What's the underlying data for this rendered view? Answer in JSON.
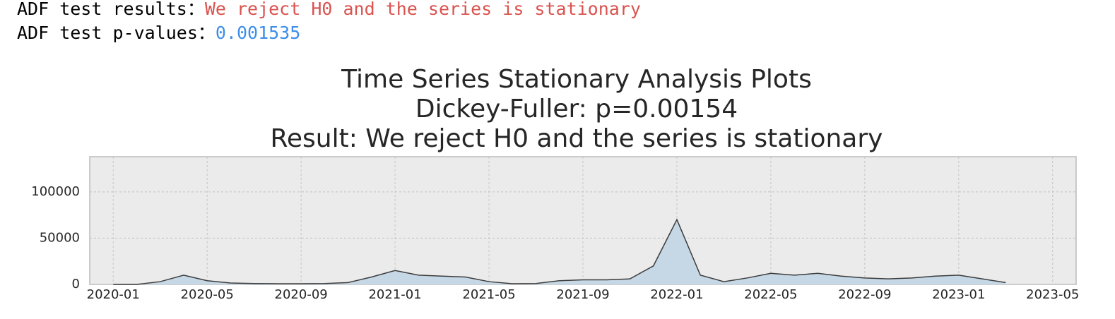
{
  "output": {
    "lines": [
      {
        "label": "ADF test results：",
        "value": "We reject H0 and the series is stationary"
      },
      {
        "label": "ADF test p-values：",
        "value": "0.001535"
      }
    ]
  },
  "chart_data": {
    "type": "area",
    "title": [
      "Time Series Stationary Analysis Plots",
      "Dickey-Fuller: p=0.00154",
      "Result: We reject H0 and the series is stationary"
    ],
    "x": [
      "2020-01",
      "2020-02",
      "2020-03",
      "2020-04",
      "2020-05",
      "2020-06",
      "2020-07",
      "2020-08",
      "2020-09",
      "2020-10",
      "2020-11",
      "2020-12",
      "2021-01",
      "2021-02",
      "2021-03",
      "2021-04",
      "2021-05",
      "2021-06",
      "2021-07",
      "2021-08",
      "2021-09",
      "2021-10",
      "2021-11",
      "2021-12",
      "2022-01",
      "2022-02",
      "2022-03",
      "2022-04",
      "2022-05",
      "2022-06",
      "2022-07",
      "2022-08",
      "2022-09",
      "2022-10",
      "2022-11",
      "2022-12",
      "2023-01",
      "2023-02",
      "2023-03"
    ],
    "values": [
      0,
      0,
      3000,
      10000,
      4000,
      1500,
      1000,
      800,
      800,
      1000,
      2000,
      8000,
      15000,
      10000,
      9000,
      8000,
      3000,
      800,
      1000,
      4000,
      5000,
      5000,
      6000,
      20000,
      70000,
      10000,
      3000,
      7000,
      12000,
      10000,
      12000,
      9000,
      7000,
      6000,
      7000,
      9000,
      10000,
      6000,
      2000
    ],
    "color": "#3c3c3c",
    "fill": "#c6d8e6",
    "xlim": [
      "2019-12",
      "2023-06"
    ],
    "xticks": [
      "2020-01",
      "2020-05",
      "2020-09",
      "2021-01",
      "2021-05",
      "2021-09",
      "2022-01",
      "2022-05",
      "2022-09",
      "2023-01",
      "2023-05"
    ],
    "ylim": [
      0,
      138000
    ],
    "yticks": [
      0,
      50000,
      100000
    ],
    "grid": true
  }
}
